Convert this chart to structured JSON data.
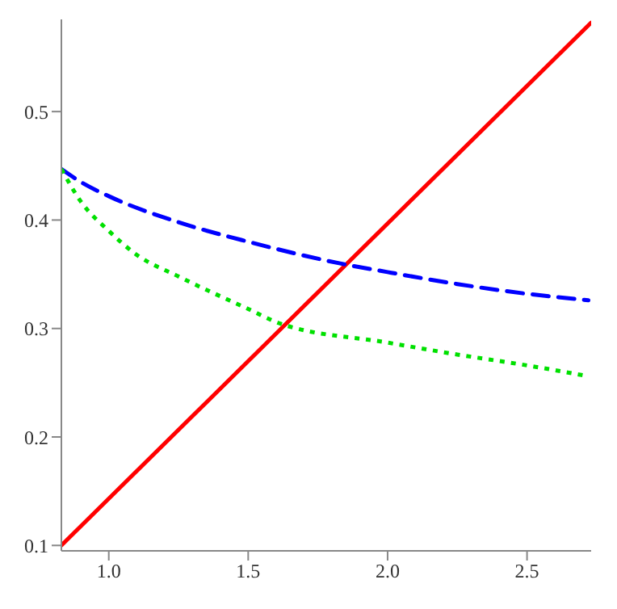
{
  "chart_data": {
    "type": "line",
    "xlim": [
      0.83,
      2.73
    ],
    "ylim": [
      0.095,
      0.585
    ],
    "xticks": [
      {
        "value": 1,
        "label": "1.0"
      },
      1.5,
      {
        "value": 2,
        "label": "2.0"
      },
      2.5
    ],
    "yticks": [
      0.1,
      0.2,
      0.3,
      0.4,
      0.5
    ],
    "series": [
      {
        "color": "#ff0000",
        "line_style": "solid",
        "x": [
          0.83,
          2.73
        ],
        "values": [
          0.1,
          0.582
        ]
      },
      {
        "color": "#0000ff",
        "line_style": "dashed",
        "x": [
          0.83,
          0.9,
          1.0,
          1.25,
          1.5,
          1.83,
          2.0,
          2.25,
          2.5,
          2.72
        ],
        "values": [
          0.447,
          0.435,
          0.422,
          0.398,
          0.38,
          0.36,
          0.352,
          0.341,
          0.332,
          0.326
        ]
      },
      {
        "color": "#00e000",
        "line_style": "dotted",
        "x": [
          0.83,
          0.9,
          1.0,
          1.1,
          1.25,
          1.5,
          1.61,
          2.0,
          2.25,
          2.5,
          2.72
        ],
        "values": [
          0.447,
          0.417,
          0.39,
          0.368,
          0.348,
          0.318,
          0.305,
          0.287,
          0.276,
          0.266,
          0.256
        ]
      }
    ]
  }
}
